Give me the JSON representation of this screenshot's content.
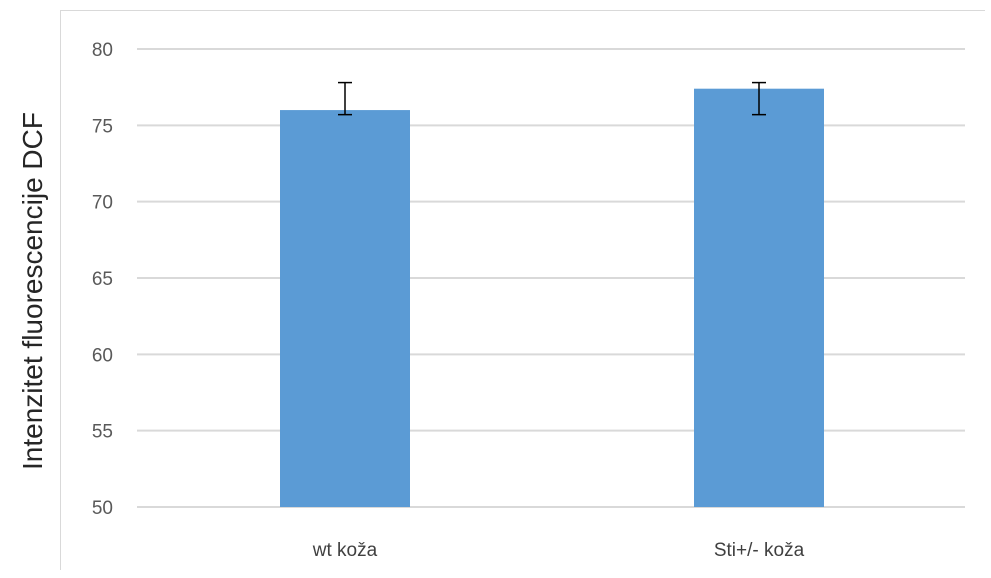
{
  "chart_data": {
    "type": "bar",
    "categories": [
      "wt koža",
      "Sti+/- koža"
    ],
    "values": [
      76.0,
      77.4
    ],
    "error_low": [
      75.7,
      75.7
    ],
    "error_high": [
      77.8,
      77.8
    ],
    "ylabel": "Intenzitet fluorescencije DCF",
    "xlabel": "",
    "ylim": [
      50,
      80
    ],
    "yticks": [
      50,
      55,
      60,
      65,
      70,
      75,
      80
    ],
    "grid": true,
    "legend": "none",
    "bar_color": "#5b9bd5",
    "grid_color": "#d9d9d9",
    "error_bar_color": "#000000"
  }
}
